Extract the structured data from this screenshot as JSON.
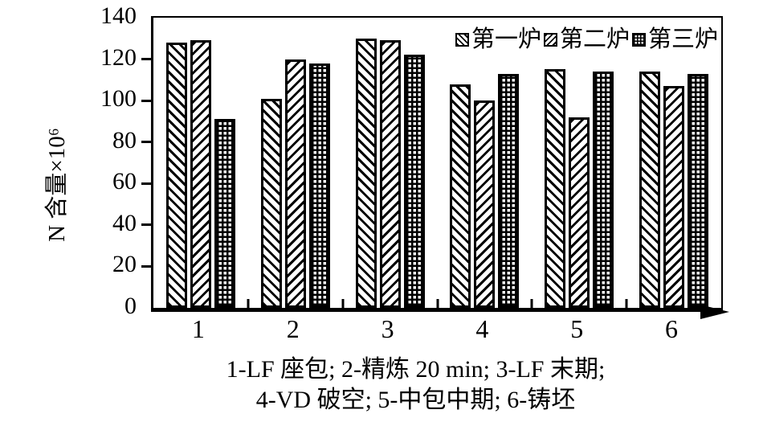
{
  "colors": {
    "foreground": "#000000",
    "background": "#ffffff"
  },
  "chart_data": {
    "type": "bar",
    "ylabel": "N 含量×10⁶",
    "ylim": [
      0,
      140
    ],
    "yticks": [
      0,
      20,
      40,
      60,
      80,
      100,
      120,
      140
    ],
    "grid": false,
    "legend_position": "top-right-inside",
    "categories": [
      "1",
      "2",
      "3",
      "4",
      "5",
      "6"
    ],
    "series": [
      {
        "name": "第一炉",
        "pattern": "diagonal-backslash-hatch",
        "values": [
          128,
          101,
          130,
          108,
          115,
          114
        ]
      },
      {
        "name": "第二炉",
        "pattern": "diagonal-slash-hatch",
        "values": [
          129,
          120,
          129,
          100,
          92,
          107
        ]
      },
      {
        "name": "第三炉",
        "pattern": "crosshatch-grid",
        "values": [
          91,
          118,
          122,
          113,
          114,
          113
        ]
      }
    ],
    "caption_line1": "1-LF 座包; 2-精炼 20 min; 3-LF 末期;",
    "caption_line2": "4-VD 破空; 5-中包中期; 6-铸坯"
  }
}
